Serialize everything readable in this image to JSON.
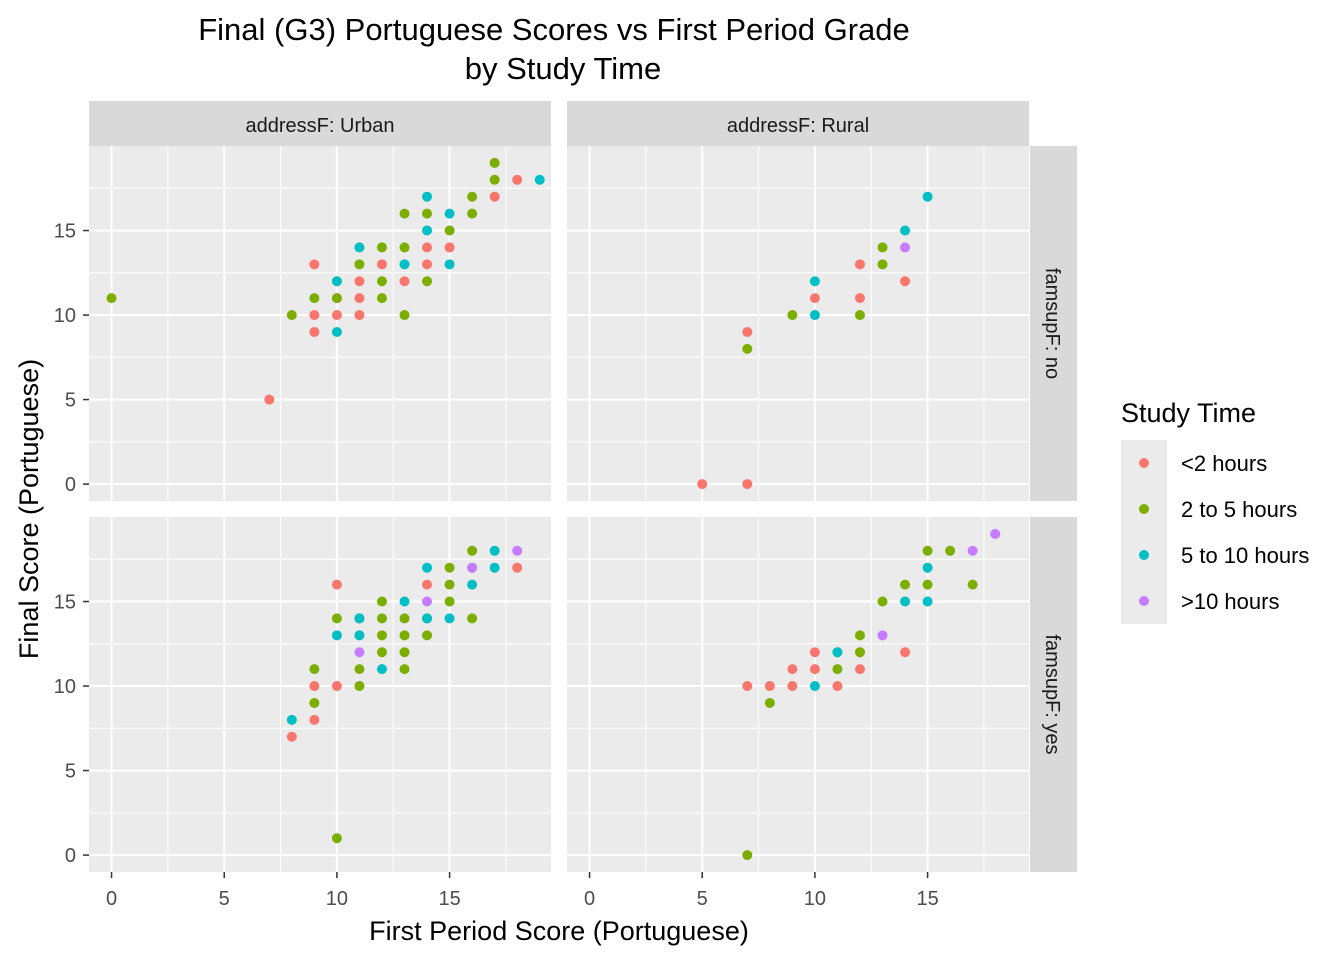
{
  "chart_data": {
    "type": "scatter",
    "title": "Final (G3) Portuguese Scores vs First Period Grade",
    "subtitle": "by Study Time",
    "xlabel": "First Period Score (Portuguese)",
    "ylabel": "Final Score (Portuguese)",
    "xlim": [
      -1,
      19.5
    ],
    "ylim": [
      -1,
      20
    ],
    "x_ticks": [
      0,
      5,
      10,
      15
    ],
    "y_ticks": [
      0,
      5,
      10,
      15
    ],
    "x_tick_labels": [
      "0",
      "5",
      "10",
      "15"
    ],
    "y_tick_labels": [
      "0",
      "5",
      "10",
      "15"
    ],
    "grid": true,
    "facet_cols": [
      "addressF: Urban",
      "addressF: Rural"
    ],
    "facet_rows": [
      "famsupF: no",
      "famsupF: yes"
    ],
    "legend": {
      "title": "Study Time",
      "placement": "right",
      "entries": [
        {
          "name": "<2 hours",
          "color": "#F8766D"
        },
        {
          "name": "2 to 5 hours",
          "color": "#7CAE00"
        },
        {
          "name": "5 to 10 hours",
          "color": "#00BFC4"
        },
        {
          "name": ">10 hours",
          "color": "#C77CFF"
        }
      ]
    },
    "panels": [
      {
        "row": "famsupF: no",
        "col": "addressF: Urban",
        "series": [
          {
            "name": "<2 hours",
            "points": [
              [
                7,
                5
              ],
              [
                9,
                13
              ],
              [
                9,
                10
              ],
              [
                9,
                9
              ],
              [
                10,
                10
              ],
              [
                10,
                11
              ],
              [
                11,
                12
              ],
              [
                11,
                11
              ],
              [
                11,
                10
              ],
              [
                12,
                13
              ],
              [
                13,
                12
              ],
              [
                14,
                14
              ],
              [
                14,
                13
              ],
              [
                15,
                14
              ],
              [
                17,
                17
              ],
              [
                18,
                18
              ]
            ]
          },
          {
            "name": "2 to 5 hours",
            "points": [
              [
                0,
                11
              ],
              [
                8,
                10
              ],
              [
                9,
                11
              ],
              [
                10,
                11
              ],
              [
                10,
                12
              ],
              [
                11,
                13
              ],
              [
                12,
                14
              ],
              [
                12,
                12
              ],
              [
                12,
                11
              ],
              [
                13,
                14
              ],
              [
                13,
                16
              ],
              [
                13,
                10
              ],
              [
                14,
                16
              ],
              [
                14,
                12
              ],
              [
                15,
                15
              ],
              [
                16,
                17
              ],
              [
                16,
                16
              ],
              [
                17,
                19
              ],
              [
                17,
                18
              ]
            ]
          },
          {
            "name": "5 to 10 hours",
            "points": [
              [
                10,
                12
              ],
              [
                10,
                9
              ],
              [
                11,
                14
              ],
              [
                13,
                13
              ],
              [
                14,
                17
              ],
              [
                14,
                15
              ],
              [
                15,
                16
              ],
              [
                15,
                13
              ],
              [
                19,
                18
              ]
            ]
          },
          {
            "name": ">10 hours",
            "points": []
          }
        ]
      },
      {
        "row": "famsupF: no",
        "col": "addressF: Rural",
        "series": [
          {
            "name": "<2 hours",
            "points": [
              [
                5,
                0
              ],
              [
                7,
                0
              ],
              [
                7,
                9
              ],
              [
                10,
                11
              ],
              [
                12,
                13
              ],
              [
                12,
                11
              ],
              [
                14,
                12
              ]
            ]
          },
          {
            "name": "2 to 5 hours",
            "points": [
              [
                7,
                8
              ],
              [
                9,
                10
              ],
              [
                12,
                10
              ],
              [
                13,
                14
              ],
              [
                13,
                13
              ]
            ]
          },
          {
            "name": "5 to 10 hours",
            "points": [
              [
                10,
                12
              ],
              [
                10,
                10
              ],
              [
                14,
                15
              ],
              [
                15,
                17
              ]
            ]
          },
          {
            "name": ">10 hours",
            "points": [
              [
                14,
                14
              ]
            ]
          }
        ]
      },
      {
        "row": "famsupF: yes",
        "col": "addressF: Urban",
        "series": [
          {
            "name": "<2 hours",
            "points": [
              [
                8,
                7
              ],
              [
                9,
                10
              ],
              [
                9,
                8
              ],
              [
                10,
                16
              ],
              [
                10,
                10
              ],
              [
                14,
                16
              ],
              [
                18,
                17
              ]
            ]
          },
          {
            "name": "2 to 5 hours",
            "points": [
              [
                9,
                11
              ],
              [
                9,
                9
              ],
              [
                10,
                14
              ],
              [
                10,
                1
              ],
              [
                11,
                14
              ],
              [
                11,
                11
              ],
              [
                11,
                10
              ],
              [
                12,
                15
              ],
              [
                12,
                14
              ],
              [
                12,
                13
              ],
              [
                12,
                12
              ],
              [
                13,
                14
              ],
              [
                13,
                13
              ],
              [
                13,
                12
              ],
              [
                13,
                11
              ],
              [
                14,
                14
              ],
              [
                14,
                13
              ],
              [
                15,
                17
              ],
              [
                15,
                16
              ],
              [
                15,
                15
              ],
              [
                16,
                18
              ],
              [
                16,
                17
              ],
              [
                16,
                14
              ]
            ]
          },
          {
            "name": "5 to 10 hours",
            "points": [
              [
                8,
                8
              ],
              [
                10,
                13
              ],
              [
                11,
                14
              ],
              [
                11,
                13
              ],
              [
                12,
                11
              ],
              [
                13,
                15
              ],
              [
                14,
                17
              ],
              [
                14,
                14
              ],
              [
                15,
                14
              ],
              [
                16,
                16
              ],
              [
                17,
                18
              ],
              [
                17,
                17
              ]
            ]
          },
          {
            "name": ">10 hours",
            "points": [
              [
                11,
                12
              ],
              [
                14,
                15
              ],
              [
                16,
                17
              ],
              [
                18,
                18
              ]
            ]
          }
        ]
      },
      {
        "row": "famsupF: yes",
        "col": "addressF: Rural",
        "series": [
          {
            "name": "<2 hours",
            "points": [
              [
                7,
                10
              ],
              [
                8,
                10
              ],
              [
                9,
                11
              ],
              [
                9,
                10
              ],
              [
                10,
                12
              ],
              [
                10,
                11
              ],
              [
                11,
                10
              ],
              [
                12,
                12
              ],
              [
                12,
                11
              ],
              [
                14,
                12
              ]
            ]
          },
          {
            "name": "2 to 5 hours",
            "points": [
              [
                7,
                0
              ],
              [
                8,
                9
              ],
              [
                11,
                12
              ],
              [
                11,
                11
              ],
              [
                12,
                13
              ],
              [
                12,
                12
              ],
              [
                13,
                15
              ],
              [
                14,
                16
              ],
              [
                15,
                16
              ],
              [
                15,
                18
              ],
              [
                16,
                18
              ],
              [
                17,
                16
              ]
            ]
          },
          {
            "name": "5 to 10 hours",
            "points": [
              [
                10,
                10
              ],
              [
                11,
                12
              ],
              [
                14,
                15
              ],
              [
                15,
                17
              ],
              [
                15,
                15
              ]
            ]
          },
          {
            "name": ">10 hours",
            "points": [
              [
                13,
                13
              ],
              [
                17,
                18
              ],
              [
                18,
                19
              ]
            ]
          }
        ]
      }
    ]
  }
}
